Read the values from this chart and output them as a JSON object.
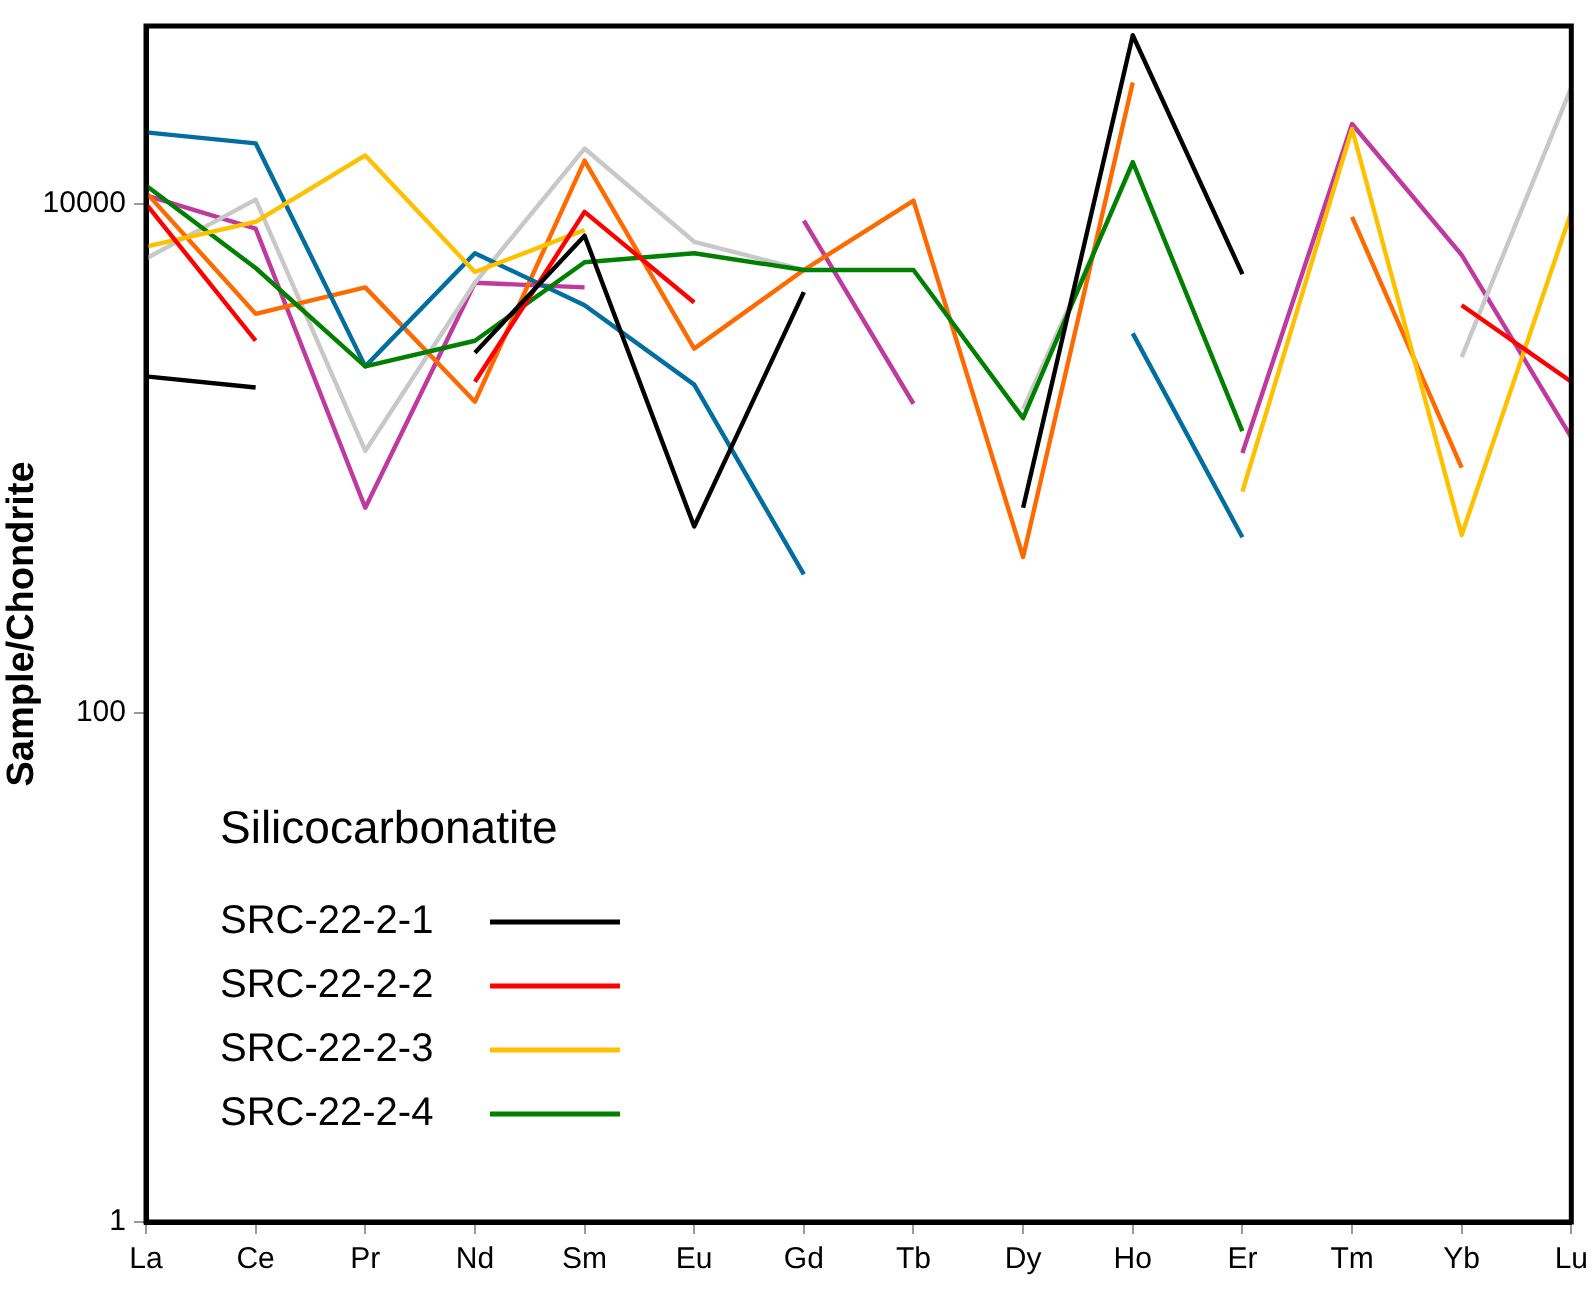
{
  "chart_data": {
    "type": "line",
    "ylabel": "Sample/Chondrite",
    "legend_title": "Silicocarbonatite",
    "legend": "bottom left",
    "log": "y",
    "grid": false,
    "marker": "none",
    "line_style": "solid",
    "categories": [
      "La",
      "Ce",
      "Pr",
      "Nd",
      "Sm",
      "Eu",
      "Gd",
      "Tb",
      "Dy",
      "Ho",
      "Er",
      "Tm",
      "Yb",
      "Lu"
    ],
    "ylim": [
      1,
      50000
    ],
    "yticks": [
      1,
      100,
      10000
    ],
    "series": [
      {
        "name": "SRC-22-2-1",
        "color": "#000000",
        "values": [
          2100,
          1900,
          null,
          2600,
          7500,
          540,
          4500,
          null,
          640,
          46000,
          5300,
          null,
          null,
          null
        ]
      },
      {
        "name": "SRC-22-2-2",
        "color": "#ff0000",
        "values": [
          10000,
          2900,
          null,
          2000,
          9300,
          4100,
          null,
          null,
          null,
          null,
          null,
          null,
          4000,
          2000
        ]
      },
      {
        "name": "SRC-22-2-3",
        "color": "#ffc000",
        "values": [
          6800,
          8500,
          15500,
          5400,
          7900,
          null,
          null,
          null,
          null,
          null,
          740,
          19700,
          500,
          9300
        ]
      },
      {
        "name": "SRC-22-2-4",
        "color": "#008000",
        "values": [
          11800,
          5600,
          2300,
          2900,
          5900,
          6400,
          5500,
          5500,
          1440,
          14600,
          1280,
          null,
          null,
          null
        ]
      },
      {
        "color": "#006ea0",
        "values": [
          19100,
          17300,
          2300,
          6400,
          4000,
          1950,
          350,
          null,
          null,
          3100,
          490,
          null,
          null,
          null
        ]
      },
      {
        "color": "#ff6a00",
        "values": [
          11100,
          3700,
          4700,
          1670,
          14800,
          2700,
          5500,
          10300,
          410,
          30000,
          null,
          8900,
          920,
          null
        ]
      },
      {
        "color": "#c8c8c8",
        "values": [
          6100,
          10400,
          1070,
          4900,
          16500,
          7100,
          5500,
          null,
          1560,
          14200,
          null,
          null,
          2500,
          28700
        ]
      },
      {
        "color": "#c0399f",
        "values": [
          10800,
          8000,
          640,
          4900,
          4700,
          null,
          8600,
          1640,
          null,
          null,
          1050,
          20600,
          6300,
          1210
        ]
      }
    ]
  }
}
